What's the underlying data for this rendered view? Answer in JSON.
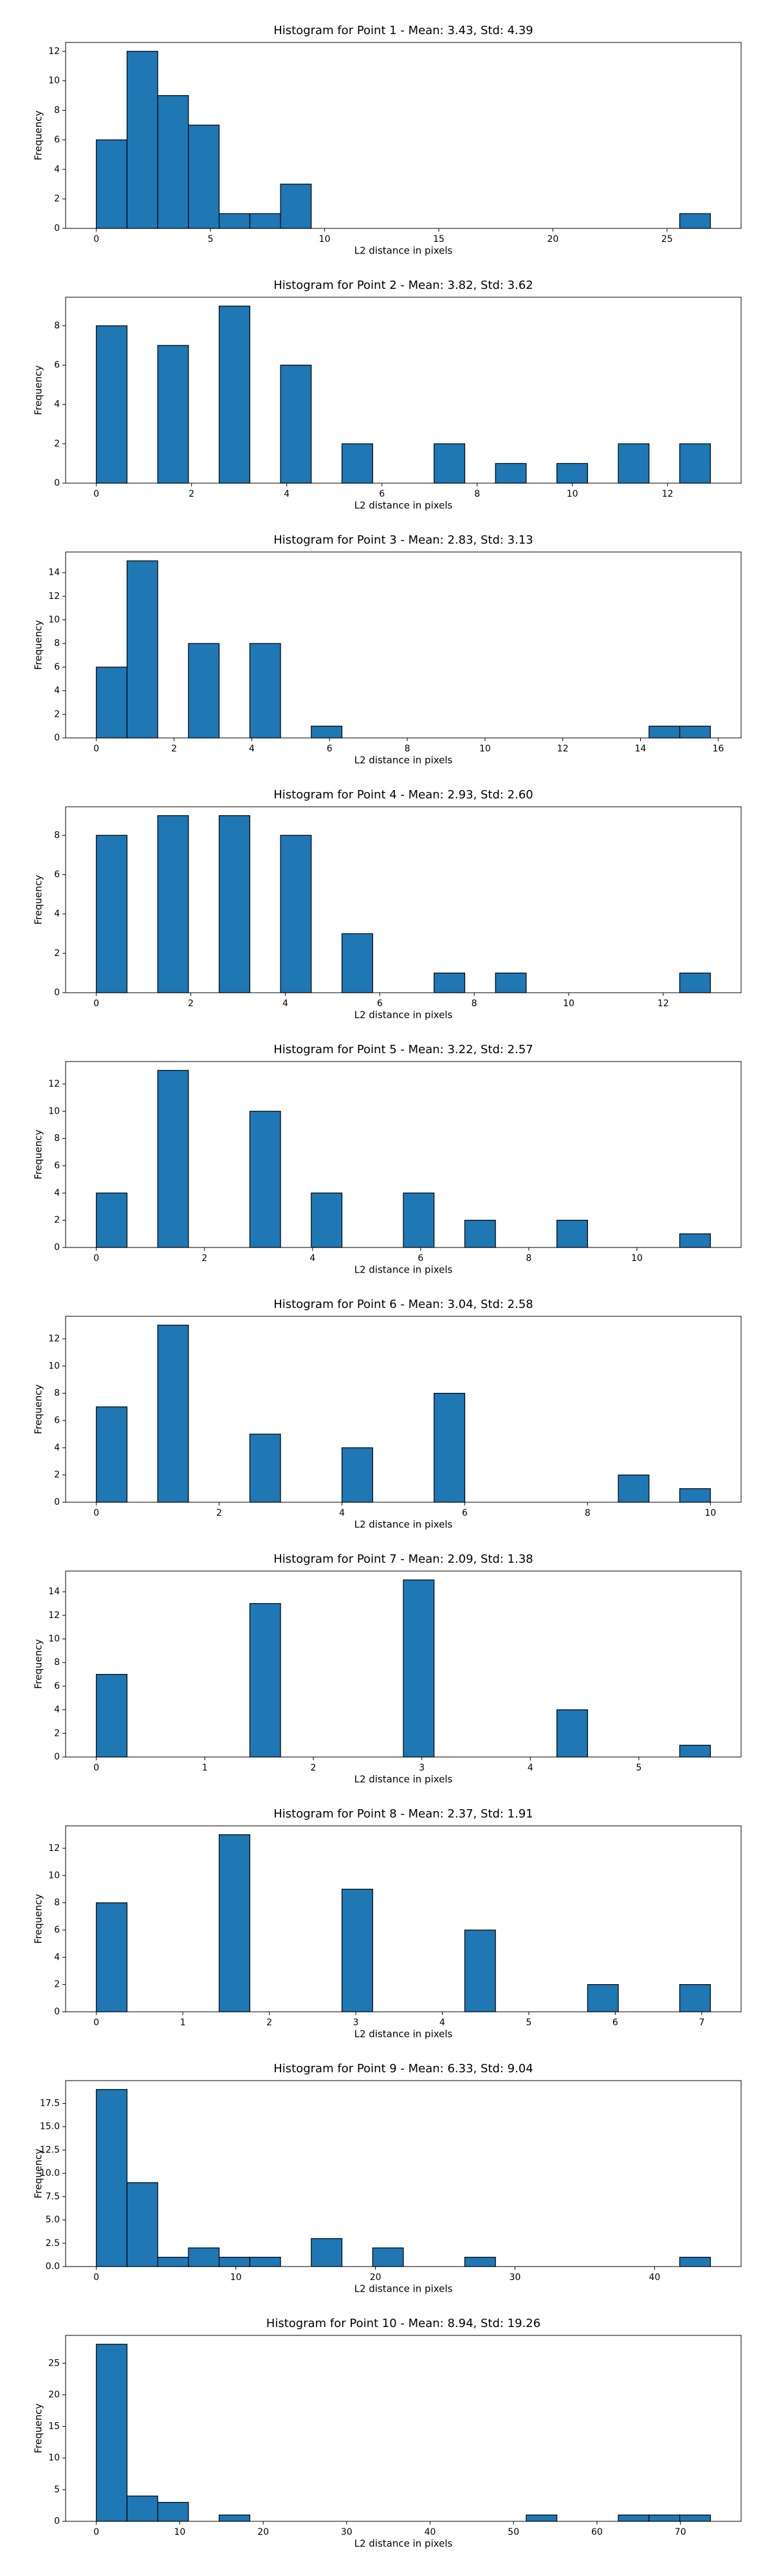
{
  "chart_data": [
    {
      "type": "histogram",
      "title": "Histogram for Point 1 - Mean: 3.43, Std: 4.39",
      "xlabel": "L2 distance in pixels",
      "ylabel": "Frequency",
      "color": "#1f77b4",
      "edgecolor": "#000000",
      "bins": [
        0,
        1.345,
        2.69,
        4.035,
        5.38,
        6.725,
        8.07,
        9.415,
        10.76,
        12.105,
        13.45,
        14.795,
        16.14,
        17.485,
        18.83,
        20.175,
        21.52,
        22.865,
        24.21,
        25.555,
        26.9
      ],
      "values": [
        6,
        12,
        9,
        7,
        1,
        1,
        3,
        0,
        0,
        0,
        0,
        0,
        0,
        0,
        0,
        0,
        0,
        0,
        0,
        1
      ],
      "xlim": [
        -1.345,
        28.245
      ],
      "xticks": [
        0,
        5,
        10,
        15,
        20,
        25
      ],
      "ylim": [
        0,
        12.6
      ],
      "yticks": [
        0,
        2,
        4,
        6,
        8,
        10,
        12
      ]
    },
    {
      "type": "histogram",
      "title": "Histogram for Point 2 - Mean: 3.82, Std: 3.62",
      "xlabel": "L2 distance in pixels",
      "ylabel": "Frequency",
      "color": "#1f77b4",
      "edgecolor": "#000000",
      "bins": [
        0,
        0.645,
        1.29,
        1.935,
        2.58,
        3.225,
        3.87,
        4.515,
        5.16,
        5.805,
        6.45,
        7.095,
        7.74,
        8.385,
        9.03,
        9.675,
        10.32,
        10.965,
        11.61,
        12.255,
        12.9
      ],
      "values": [
        8,
        0,
        7,
        0,
        9,
        0,
        6,
        0,
        2,
        0,
        0,
        2,
        0,
        1,
        0,
        1,
        0,
        2,
        0,
        2
      ],
      "xlim": [
        -0.645,
        13.545
      ],
      "xticks": [
        0,
        2,
        4,
        6,
        8,
        10,
        12
      ],
      "ylim": [
        0,
        9.45
      ],
      "yticks": [
        0,
        2,
        4,
        6,
        8
      ]
    },
    {
      "type": "histogram",
      "title": "Histogram for Point 3 - Mean: 2.83, Std: 3.13",
      "xlabel": "L2 distance in pixels",
      "ylabel": "Frequency",
      "color": "#1f77b4",
      "edgecolor": "#000000",
      "bins": [
        0,
        0.79,
        1.58,
        2.37,
        3.16,
        3.95,
        4.74,
        5.53,
        6.32,
        7.11,
        7.9,
        8.69,
        9.48,
        10.27,
        11.06,
        11.85,
        12.64,
        13.43,
        14.22,
        15.01,
        15.8
      ],
      "values": [
        6,
        15,
        0,
        8,
        0,
        8,
        0,
        1,
        0,
        0,
        0,
        0,
        0,
        0,
        0,
        0,
        0,
        0,
        1,
        1
      ],
      "xlim": [
        -0.79,
        16.59
      ],
      "xticks": [
        0,
        2,
        4,
        6,
        8,
        10,
        12,
        14,
        16
      ],
      "ylim": [
        0,
        15.75
      ],
      "yticks": [
        0,
        2,
        4,
        6,
        8,
        10,
        12,
        14
      ]
    },
    {
      "type": "histogram",
      "title": "Histogram for Point 4 - Mean: 2.93, Std: 2.60",
      "xlabel": "L2 distance in pixels",
      "ylabel": "Frequency",
      "color": "#1f77b4",
      "edgecolor": "#000000",
      "bins": [
        0,
        0.65,
        1.3,
        1.95,
        2.6,
        3.25,
        3.9,
        4.55,
        5.2,
        5.85,
        6.5,
        7.15,
        7.8,
        8.45,
        9.1,
        9.75,
        10.4,
        11.05,
        11.7,
        12.35,
        13
      ],
      "values": [
        8,
        0,
        9,
        0,
        9,
        0,
        8,
        0,
        3,
        0,
        0,
        1,
        0,
        1,
        0,
        0,
        0,
        0,
        0,
        1
      ],
      "xlim": [
        -0.65,
        13.65
      ],
      "xticks": [
        0,
        2,
        4,
        6,
        8,
        10,
        12
      ],
      "ylim": [
        0,
        9.45
      ],
      "yticks": [
        0,
        2,
        4,
        6,
        8
      ]
    },
    {
      "type": "histogram",
      "title": "Histogram for Point 5 - Mean: 3.22, Std: 2.57",
      "xlabel": "L2 distance in pixels",
      "ylabel": "Frequency",
      "color": "#1f77b4",
      "edgecolor": "#000000",
      "bins": [
        0,
        0.568,
        1.136,
        1.704,
        2.272,
        2.84,
        3.408,
        3.976,
        4.544,
        5.112,
        5.68,
        6.248,
        6.816,
        7.384,
        7.952,
        8.52,
        9.088,
        9.656,
        10.224,
        10.792,
        11.36
      ],
      "values": [
        4,
        0,
        13,
        0,
        0,
        10,
        0,
        4,
        0,
        0,
        4,
        0,
        2,
        0,
        0,
        2,
        0,
        0,
        0,
        1
      ],
      "xlim": [
        -0.568,
        11.928
      ],
      "xticks": [
        0,
        2,
        4,
        6,
        8,
        10
      ],
      "ylim": [
        0,
        13.65
      ],
      "yticks": [
        0,
        2,
        4,
        6,
        8,
        10,
        12
      ]
    },
    {
      "type": "histogram",
      "title": "Histogram for Point 6 - Mean: 3.04, Std: 2.58",
      "xlabel": "L2 distance in pixels",
      "ylabel": "Frequency",
      "color": "#1f77b4",
      "edgecolor": "#000000",
      "bins": [
        0,
        0.5,
        1,
        1.5,
        2,
        2.5,
        3,
        3.5,
        4,
        4.5,
        5,
        5.5,
        6,
        6.5,
        7,
        7.5,
        8,
        8.5,
        9,
        9.5,
        10
      ],
      "values": [
        7,
        0,
        13,
        0,
        0,
        5,
        0,
        0,
        4,
        0,
        0,
        8,
        0,
        0,
        0,
        0,
        0,
        2,
        0,
        1
      ],
      "xlim": [
        -0.5,
        10.5
      ],
      "xticks": [
        0,
        2,
        4,
        6,
        8,
        10
      ],
      "ylim": [
        0,
        13.65
      ],
      "yticks": [
        0,
        2,
        4,
        6,
        8,
        10,
        12
      ]
    },
    {
      "type": "histogram",
      "title": "Histogram for Point 7 - Mean: 2.09, Std: 1.38",
      "xlabel": "L2 distance in pixels",
      "ylabel": "Frequency",
      "color": "#1f77b4",
      "edgecolor": "#000000",
      "bins": [
        0,
        0.283,
        0.566,
        0.849,
        1.132,
        1.415,
        1.698,
        1.981,
        2.264,
        2.547,
        2.83,
        3.113,
        3.396,
        3.679,
        3.962,
        4.245,
        4.528,
        4.811,
        5.094,
        5.377,
        5.66
      ],
      "values": [
        7,
        0,
        0,
        0,
        0,
        13,
        0,
        0,
        0,
        0,
        15,
        0,
        0,
        0,
        0,
        4,
        0,
        0,
        0,
        1
      ],
      "xlim": [
        -0.283,
        5.943
      ],
      "xticks": [
        0,
        1,
        2,
        3,
        4,
        5
      ],
      "ylim": [
        0,
        15.75
      ],
      "yticks": [
        0,
        2,
        4,
        6,
        8,
        10,
        12,
        14
      ]
    },
    {
      "type": "histogram",
      "title": "Histogram for Point 8 - Mean: 2.37, Std: 1.91",
      "xlabel": "L2 distance in pixels",
      "ylabel": "Frequency",
      "color": "#1f77b4",
      "edgecolor": "#000000",
      "bins": [
        0,
        0.355,
        0.71,
        1.065,
        1.42,
        1.775,
        2.13,
        2.485,
        2.84,
        3.195,
        3.55,
        3.905,
        4.26,
        4.615,
        4.97,
        5.325,
        5.68,
        6.035,
        6.39,
        6.745,
        7.1
      ],
      "values": [
        8,
        0,
        0,
        0,
        13,
        0,
        0,
        0,
        9,
        0,
        0,
        0,
        6,
        0,
        0,
        0,
        2,
        0,
        0,
        2
      ],
      "xlim": [
        -0.355,
        7.455
      ],
      "xticks": [
        0,
        1,
        2,
        3,
        4,
        5,
        6,
        7
      ],
      "ylim": [
        0,
        13.65
      ],
      "yticks": [
        0,
        2,
        4,
        6,
        8,
        10,
        12
      ]
    },
    {
      "type": "histogram",
      "title": "Histogram for Point 9 - Mean: 6.33, Std: 9.04",
      "xlabel": "L2 distance in pixels",
      "ylabel": "Frequency",
      "color": "#1f77b4",
      "edgecolor": "#000000",
      "bins": [
        0,
        2.2,
        4.4,
        6.6,
        8.8,
        11,
        13.2,
        15.4,
        17.6,
        19.8,
        22,
        24.2,
        26.4,
        28.6,
        30.8,
        33,
        35.2,
        37.4,
        39.6,
        41.8,
        44
      ],
      "values": [
        19,
        9,
        1,
        2,
        1,
        1,
        0,
        3,
        0,
        2,
        0,
        0,
        1,
        0,
        0,
        0,
        0,
        0,
        0,
        1
      ],
      "xlim": [
        -2.2,
        46.2
      ],
      "xticks": [
        0,
        10,
        20,
        30,
        40
      ],
      "ylim": [
        0,
        19.95
      ],
      "yticks": [
        {
          "value": 0,
          "label": "0.0"
        },
        2.5,
        {
          "value": 5,
          "label": "5.0"
        },
        7.5,
        {
          "value": 10,
          "label": "10.0"
        },
        12.5,
        {
          "value": 15,
          "label": "15.0"
        },
        17.5
      ]
    },
    {
      "type": "histogram",
      "title": "Histogram for Point 10 - Mean: 8.94, Std: 19.26",
      "xlabel": "L2 distance in pixels",
      "ylabel": "Frequency",
      "color": "#1f77b4",
      "edgecolor": "#000000",
      "bins": [
        0,
        3.68,
        7.36,
        11.04,
        14.72,
        18.4,
        22.08,
        25.76,
        29.44,
        33.12,
        36.8,
        40.48,
        44.16,
        47.84,
        51.52,
        55.2,
        58.88,
        62.56,
        66.24,
        69.92,
        73.6
      ],
      "values": [
        28,
        4,
        3,
        0,
        1,
        0,
        0,
        0,
        0,
        0,
        0,
        0,
        0,
        0,
        1,
        0,
        0,
        1,
        1,
        1
      ],
      "xlim": [
        -3.68,
        77.28
      ],
      "xticks": [
        0,
        10,
        20,
        30,
        40,
        50,
        60,
        70
      ],
      "ylim": [
        0,
        29.4
      ],
      "yticks": [
        0,
        5,
        10,
        15,
        20,
        25
      ]
    }
  ]
}
